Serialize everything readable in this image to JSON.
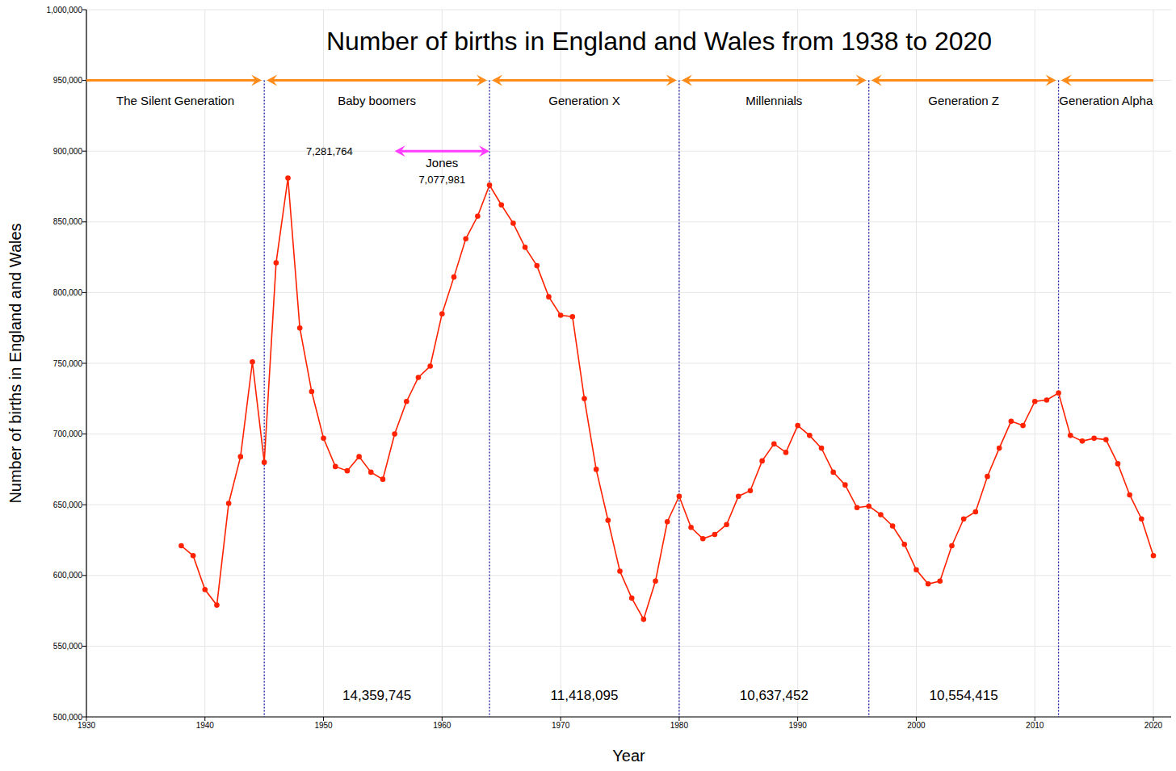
{
  "chart_data": {
    "type": "line",
    "title": "Number of births in England and Wales from 1938 to 2020",
    "x_label": "Year",
    "y_label": "Number of births in England and Wales",
    "color": "#ff2200",
    "marker": "circle",
    "line_style": "solid",
    "grid": true,
    "x": [
      1938,
      1939,
      1940,
      1941,
      1942,
      1943,
      1944,
      1945,
      1946,
      1947,
      1948,
      1949,
      1950,
      1951,
      1952,
      1953,
      1954,
      1955,
      1956,
      1957,
      1958,
      1959,
      1960,
      1961,
      1962,
      1963,
      1964,
      1965,
      1966,
      1967,
      1968,
      1969,
      1970,
      1971,
      1972,
      1973,
      1974,
      1975,
      1976,
      1977,
      1978,
      1979,
      1980,
      1981,
      1982,
      1983,
      1984,
      1985,
      1986,
      1987,
      1988,
      1989,
      1990,
      1991,
      1992,
      1993,
      1994,
      1995,
      1996,
      1997,
      1998,
      1999,
      2000,
      2001,
      2002,
      2003,
      2004,
      2005,
      2006,
      2007,
      2008,
      2009,
      2010,
      2011,
      2012,
      2013,
      2014,
      2015,
      2016,
      2017,
      2018,
      2019,
      2020
    ],
    "values": [
      621000,
      614000,
      590000,
      579000,
      651000,
      684000,
      751000,
      680000,
      821000,
      881000,
      775000,
      730000,
      697000,
      677000,
      674000,
      684000,
      673000,
      668000,
      700000,
      723000,
      740000,
      748000,
      785000,
      811000,
      838000,
      854000,
      876000,
      862000,
      849000,
      832000,
      819000,
      797000,
      784000,
      783000,
      725000,
      675000,
      639000,
      603000,
      584000,
      569000,
      596000,
      638000,
      656000,
      634000,
      626000,
      629000,
      636000,
      656000,
      660000,
      681000,
      693000,
      687000,
      706000,
      699000,
      690000,
      673000,
      664000,
      648000,
      649000,
      643000,
      635000,
      622000,
      604000,
      594000,
      596000,
      621000,
      640000,
      645000,
      670000,
      690000,
      709000,
      706000,
      723000,
      724000,
      729000,
      699000,
      695000,
      697000,
      696000,
      679000,
      657000,
      640000,
      614000
    ],
    "xlim": [
      1930,
      2021.5
    ],
    "xticks": [
      1930,
      1940,
      1950,
      1960,
      1970,
      1980,
      1990,
      2000,
      2010,
      2020
    ],
    "ylim": [
      500000,
      1000000
    ],
    "yticks": [
      {
        "value": 500000,
        "label": "500,000"
      },
      {
        "value": 550000,
        "label": "550,000"
      },
      {
        "value": 600000,
        "label": "600,000"
      },
      {
        "value": 650000,
        "label": "650,000"
      },
      {
        "value": 700000,
        "label": "700,000"
      },
      {
        "value": 750000,
        "label": "750,000"
      },
      {
        "value": 800000,
        "label": "800,000"
      },
      {
        "value": 850000,
        "label": "850,000"
      },
      {
        "value": 900000,
        "label": "900,000"
      },
      {
        "value": 950000,
        "label": "950,000"
      },
      {
        "value": 1000000,
        "label": "1,000,000"
      }
    ],
    "generations": [
      {
        "name": "The Silent Generation",
        "start": 1930,
        "end": 1945
      },
      {
        "name": "Baby boomers",
        "start": 1945,
        "end": 1964,
        "total": {
          "value": 14359745,
          "label": "14,359,745"
        }
      },
      {
        "name": "Generation X",
        "start": 1964,
        "end": 1980,
        "total": {
          "value": 11418095,
          "label": "11,418,095"
        }
      },
      {
        "name": "Millennials",
        "start": 1980,
        "end": 1996,
        "total": {
          "value": 10637452,
          "label": "10,637,452"
        }
      },
      {
        "name": "Generation Z",
        "start": 1996,
        "end": 2012,
        "total": {
          "value": 10554415,
          "label": "10,554,415"
        }
      },
      {
        "name": "Generation Alpha",
        "start": 2012,
        "end": 2020
      }
    ],
    "cohorts": [
      {
        "start": 1945,
        "end": 1956,
        "total": {
          "value": 7281764,
          "label": "7,281,764"
        }
      },
      {
        "name": "Jones",
        "start": 1956,
        "end": 1964,
        "total": {
          "value": 7077981,
          "label": "7,077,981"
        }
      }
    ]
  }
}
